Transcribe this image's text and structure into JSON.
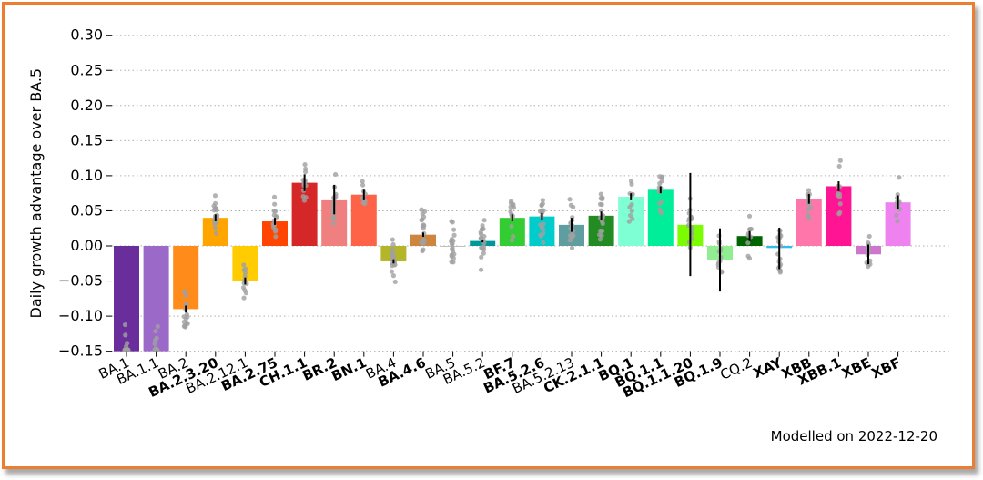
{
  "footer": {
    "modelled_on": "Modelled on 2022-12-20"
  },
  "colors": {
    "frame_border": "#ed7d31",
    "grid": "#b0b0b0",
    "error_bar": "#000000",
    "points": "#a0a0a0"
  },
  "chart_data": {
    "type": "bar",
    "title": "",
    "xlabel": "",
    "ylabel": "Daily growth advantage over BA.5",
    "ylim": [
      -0.15,
      0.32
    ],
    "yticks": [
      "0.30",
      "0.25",
      "0.20",
      "0.15",
      "0.10",
      "0.05",
      "0.00",
      "−0.05",
      "−0.10",
      "−0.15"
    ],
    "ytick_values": [
      0.3,
      0.25,
      0.2,
      0.15,
      0.1,
      0.05,
      0.0,
      -0.05,
      -0.1,
      -0.15
    ],
    "grid": "horizontal dotted",
    "categories": [
      "BA.1",
      "BA.1.1",
      "BA.2",
      "BA.2.3.20",
      "BA.2.12.1",
      "BA.2.75",
      "CH.1.1",
      "BR.2",
      "BN.1",
      "BA.4",
      "BA.4.6",
      "BA.5",
      "BA.5.2",
      "BF.7",
      "BA.5.2.6",
      "BA.5.2.13",
      "CK.2.1.1",
      "BQ.1",
      "BQ.1.1",
      "BQ.1.1.20",
      "BQ.1.9",
      "CQ.2",
      "XAY",
      "XBB",
      "XBB.1",
      "XBE",
      "XBF"
    ],
    "bold_categories": [
      "BA.2.3.20",
      "BA.2.75",
      "CH.1.1",
      "BR.2",
      "BN.1",
      "BA.4.6",
      "BF.7",
      "BA.5.2.6",
      "CK.2.1.1",
      "BQ.1",
      "BQ.1.1",
      "BQ.1.1.20",
      "BQ.1.9",
      "XAY",
      "XBB",
      "XBB.1",
      "XBE",
      "XBF"
    ],
    "values": [
      -0.15,
      -0.15,
      -0.09,
      0.04,
      -0.05,
      0.035,
      0.09,
      0.065,
      0.073,
      -0.022,
      0.016,
      0.0,
      0.007,
      0.04,
      0.042,
      0.03,
      0.043,
      0.07,
      0.08,
      0.03,
      -0.02,
      0.014,
      -0.003,
      0.067,
      0.085,
      -0.012,
      0.062
    ],
    "bar_colors": [
      "#6a2e9c",
      "#9b6ac8",
      "#ff8c1a",
      "#ffa500",
      "#ffcc00",
      "#ff4500",
      "#d62728",
      "#f08080",
      "#ff6347",
      "#b5b52a",
      "#cd853f",
      "#808080",
      "#009999",
      "#33cc33",
      "#00cccc",
      "#5f9ea0",
      "#228b22",
      "#7fffd4",
      "#00ee99",
      "#7cfc00",
      "#90ee90",
      "#006400",
      "#33bbee",
      "#ff77aa",
      "#ff1493",
      "#cc77cc",
      "#ee82ee"
    ],
    "error_bars": [
      null,
      null,
      [
        -0.095,
        -0.085
      ],
      [
        0.035,
        0.045
      ],
      [
        -0.055,
        -0.045
      ],
      [
        0.03,
        0.04
      ],
      [
        0.078,
        0.102
      ],
      [
        0.045,
        0.087
      ],
      [
        0.065,
        0.08
      ],
      [
        -0.025,
        -0.019
      ],
      [
        0.013,
        0.019
      ],
      null,
      [
        0.005,
        0.009
      ],
      [
        0.035,
        0.045
      ],
      [
        0.037,
        0.047
      ],
      [
        0.02,
        0.04
      ],
      [
        0.037,
        0.049
      ],
      [
        0.065,
        0.075
      ],
      [
        0.075,
        0.085
      ],
      [
        -0.043,
        0.104
      ],
      [
        -0.065,
        0.025
      ],
      [
        0.007,
        0.021
      ],
      [
        -0.033,
        0.026
      ],
      [
        0.06,
        0.074
      ],
      [
        0.078,
        0.092
      ],
      [
        -0.026,
        0.002
      ],
      [
        0.052,
        0.072
      ]
    ]
  }
}
